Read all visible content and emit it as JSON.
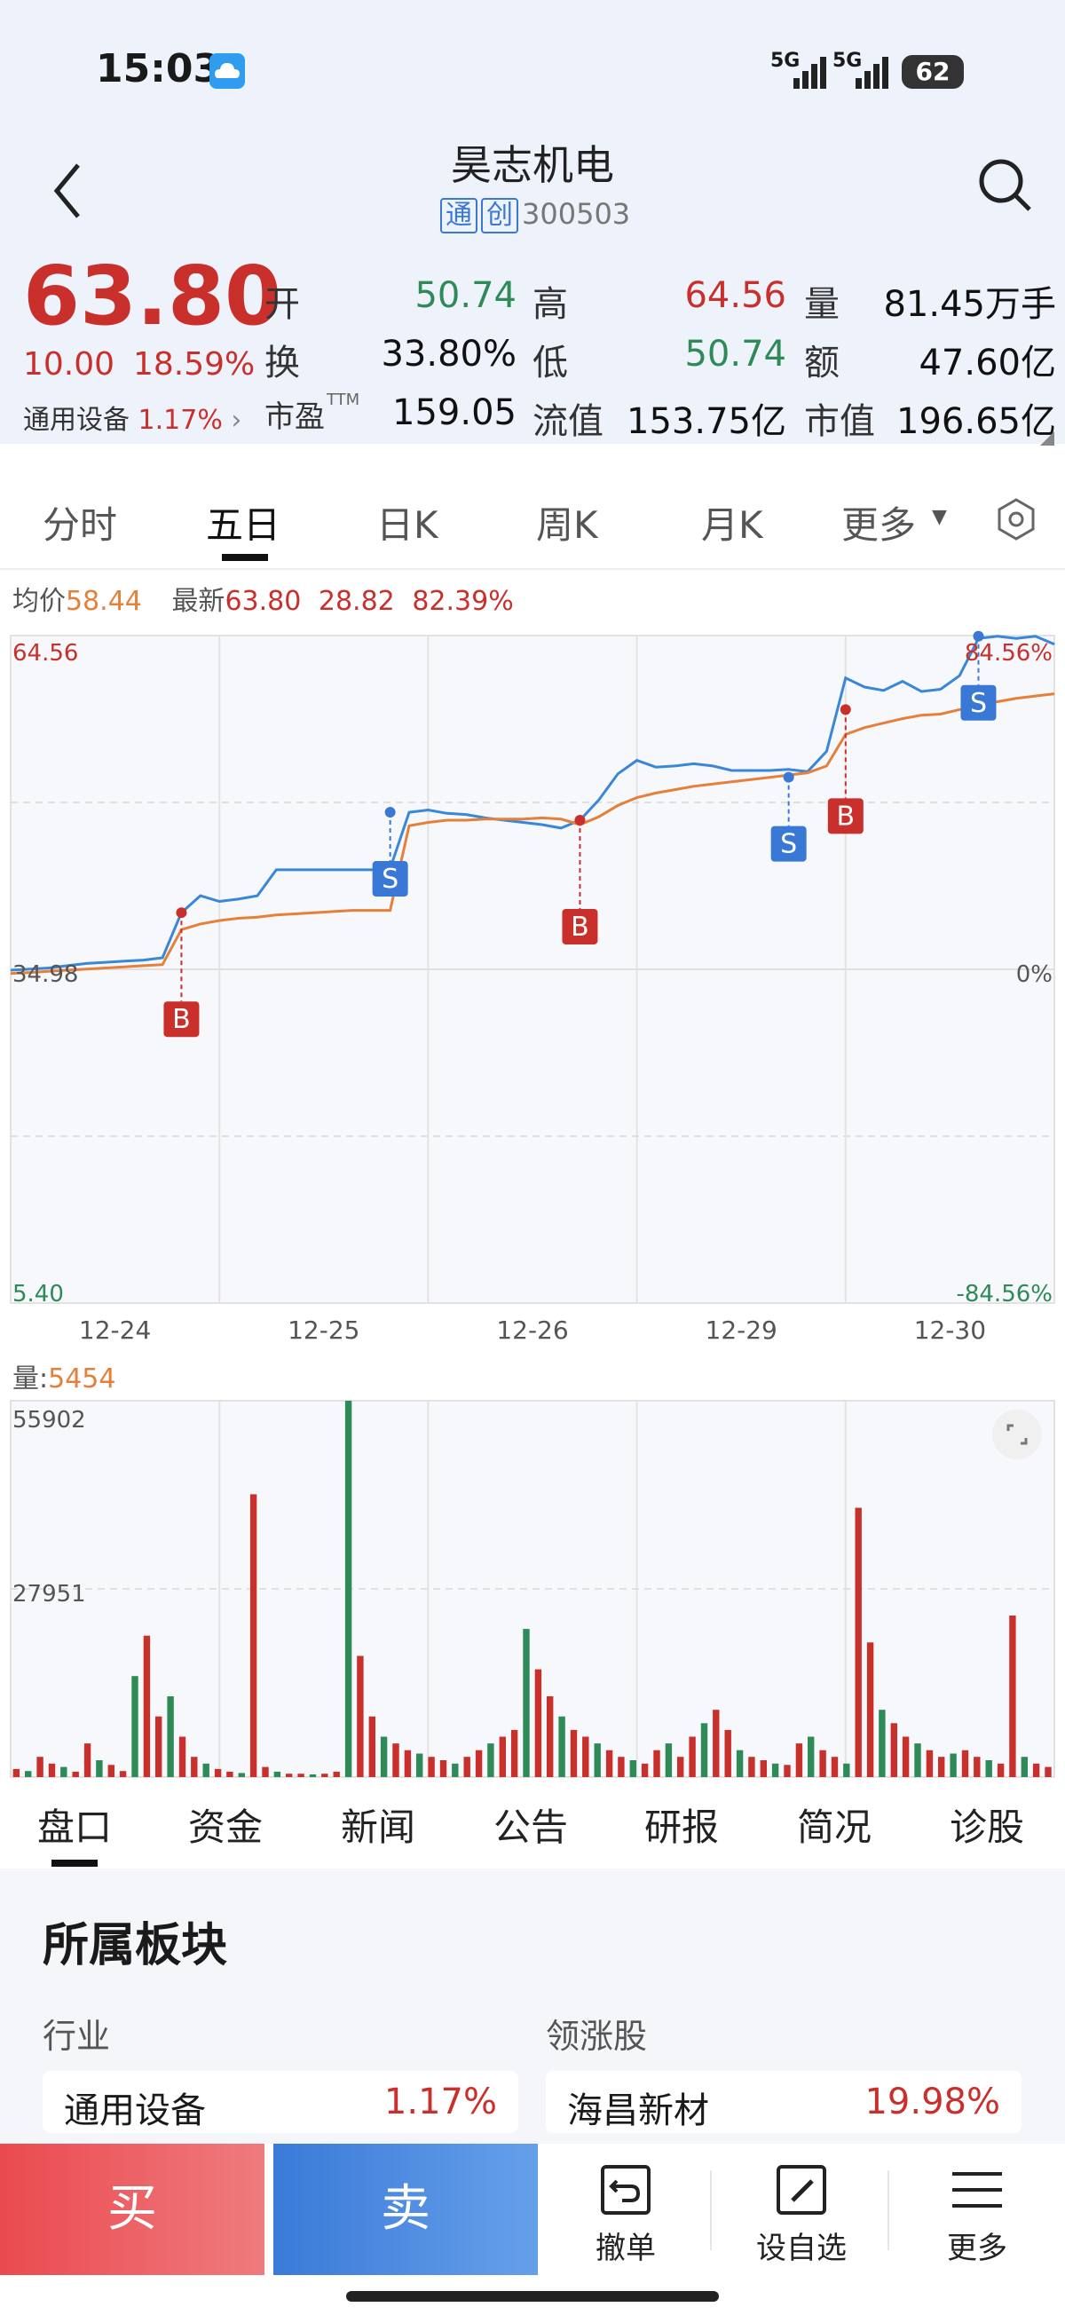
{
  "status": {
    "time": "15:03",
    "battery": "62",
    "net1": "5G",
    "net2": "5G"
  },
  "header": {
    "title": "昊志机电",
    "tags": [
      "通",
      "创"
    ],
    "code": "300503"
  },
  "quote": {
    "price": "63.80",
    "change": "10.00",
    "pct": "18.59%",
    "sector_name": "通用设备",
    "sector_pct": "1.17%",
    "rows": [
      [
        {
          "k": "开",
          "v": "50.74",
          "c": "green"
        },
        {
          "k": "高",
          "v": "64.56",
          "c": "red"
        },
        {
          "k": "量",
          "v": "81.45万手",
          "c": "black"
        }
      ],
      [
        {
          "k": "换",
          "v": "33.80%",
          "c": "black"
        },
        {
          "k": "低",
          "v": "50.74",
          "c": "green"
        },
        {
          "k": "额",
          "v": "47.60亿",
          "c": "black"
        }
      ],
      [
        {
          "k": "市盈",
          "v": "159.05",
          "c": "black",
          "sup": "TTM"
        },
        {
          "k": "流值",
          "v": "153.75亿",
          "c": "black"
        },
        {
          "k": "市值",
          "v": "196.65亿",
          "c": "black"
        }
      ]
    ]
  },
  "chart_tabs": [
    "分时",
    "五日",
    "日K",
    "周K",
    "月K",
    "更多"
  ],
  "chart_tabs_active": 1,
  "chart_info": {
    "avg_label": "均价",
    "avg": "58.44",
    "latest_label": "最新",
    "latest": "63.80",
    "change": "28.82",
    "pct": "82.39%"
  },
  "chart_data": {
    "type": "line",
    "y_labels_left": [
      "64.56",
      "34.98",
      "5.40"
    ],
    "y_labels_right": [
      "84.56%",
      "0%",
      "-84.56%"
    ],
    "ylim": [
      5.4,
      64.56
    ],
    "x_labels": [
      "12-24",
      "12-25",
      "12-26",
      "12-29",
      "12-30"
    ],
    "series": [
      {
        "values": [
          34.9,
          35.0,
          35.1,
          35.3,
          35.5,
          35.6,
          35.7,
          35.8,
          36.0,
          40.0,
          41.5,
          41.0,
          41.2,
          41.5,
          43.8,
          43.8,
          43.8,
          43.8,
          43.8,
          43.8,
          43.9,
          48.9,
          49.1,
          48.8,
          48.7,
          48.4,
          48.2,
          48.0,
          47.8,
          47.5,
          48.2,
          50.0,
          52.3,
          53.5,
          52.9,
          53.0,
          53.2,
          53.0,
          52.6,
          52.6,
          52.6,
          52.7,
          52.5,
          54.3,
          60.8,
          60.0,
          59.7,
          60.5,
          59.6,
          59.8,
          61.0,
          64.3,
          64.5,
          64.3,
          64.5,
          63.8
        ]
      },
      {
        "values": [
          34.6,
          34.7,
          34.8,
          34.9,
          35.0,
          35.1,
          35.2,
          35.3,
          35.4,
          38.5,
          39.0,
          39.3,
          39.5,
          39.6,
          39.8,
          39.9,
          40.0,
          40.1,
          40.2,
          40.2,
          40.2,
          47.7,
          48.0,
          48.2,
          48.2,
          48.3,
          48.3,
          48.3,
          48.4,
          48.3,
          47.8,
          48.5,
          49.5,
          50.2,
          50.6,
          50.9,
          51.2,
          51.4,
          51.6,
          51.8,
          52.0,
          52.2,
          52.4,
          53.0,
          55.8,
          56.4,
          56.8,
          57.2,
          57.5,
          57.6,
          58.0,
          58.4,
          58.7,
          59.0,
          59.2,
          59.4
        ]
      }
    ],
    "markers": [
      {
        "label": "B",
        "x": 9,
        "y": 40.0,
        "pos": "below"
      },
      {
        "label": "S",
        "x": 20,
        "y": 48.9,
        "pos": "below"
      },
      {
        "label": "B",
        "x": 30,
        "y": 48.2,
        "pos": "below"
      },
      {
        "label": "S",
        "x": 41,
        "y": 52.0,
        "pos": "below"
      },
      {
        "label": "B",
        "x": 44,
        "y": 58.0,
        "pos": "below"
      },
      {
        "label": "S",
        "x": 51,
        "y": 64.5,
        "pos": "below"
      }
    ]
  },
  "volume": {
    "label": "量:",
    "value": "5454",
    "y_labels": [
      "55902",
      "27951"
    ],
    "ymax": 55902,
    "bars": [
      1200,
      900,
      3000,
      2000,
      1500,
      800,
      5000,
      2500,
      1800,
      900,
      15000,
      21000,
      9000,
      12000,
      6000,
      3000,
      2000,
      1200,
      800,
      600,
      42000,
      1500,
      800,
      500,
      500,
      400,
      500,
      800,
      55902,
      18000,
      9000,
      6000,
      5000,
      4000,
      3500,
      3000,
      2500,
      2000,
      3000,
      4000,
      5000,
      6000,
      7000,
      22000,
      16000,
      12000,
      9000,
      7000,
      6000,
      5000,
      4000,
      3000,
      2500,
      2000,
      4000,
      5000,
      3000,
      6000,
      8000,
      10000,
      7000,
      4000,
      3000,
      2500,
      2000,
      1800,
      5000,
      6000,
      4000,
      3000,
      2000,
      40000,
      20000,
      10000,
      8000,
      6000,
      5000,
      4000,
      3000,
      3500,
      4000,
      3000,
      2500,
      2000,
      24000,
      3000,
      2000,
      1500
    ]
  },
  "info_tabs": [
    "盘口",
    "资金",
    "新闻",
    "公告",
    "研报",
    "简况",
    "诊股"
  ],
  "section": {
    "title": "所属板块",
    "industry_label": "行业",
    "leader_label": "领涨股",
    "industry_name": "通用设备",
    "industry_pct": "1.17%",
    "leader_name": "海昌新材",
    "leader_pct": "19.98%"
  },
  "bottom": {
    "buy": "买",
    "sell": "卖",
    "cancel": "撤单",
    "watch": "设自选",
    "more": "更多"
  },
  "colors": {
    "red": "#c9302c",
    "green": "#2e8a57",
    "price_line": "#3a86d8",
    "avg_line": "#e5803a"
  }
}
